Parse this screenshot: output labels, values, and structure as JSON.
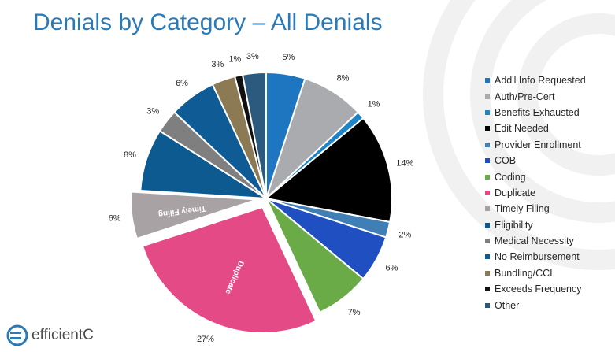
{
  "title": "Denials by Category – All Denials",
  "logo": {
    "text": "efficientC",
    "icon": "efficientc-logo-icon"
  },
  "colors": {
    "title": "#2a7ab8",
    "slice_label": "#ffffff"
  },
  "chart_data": {
    "type": "pie",
    "title": "Denials by Category – All Denials",
    "legend_position": "right",
    "start_angle": "12 o'clock, clockwise",
    "slices": [
      {
        "name": "Add'l Info Requested",
        "value": 5,
        "label": "5%",
        "color": "#1f76c0"
      },
      {
        "name": "Auth/Pre-Cert",
        "value": 8,
        "label": "8%",
        "color": "#a9abae"
      },
      {
        "name": "Benefits Exhausted",
        "value": 1,
        "label": "1%",
        "color": "#1e84c6"
      },
      {
        "name": "Edit Needed",
        "value": 14,
        "label": "14%",
        "color": "#000000"
      },
      {
        "name": "Provider Enrollment",
        "value": 2,
        "label": "2%",
        "color": "#3f7fb5"
      },
      {
        "name": "COB",
        "value": 6,
        "label": "6%",
        "color": "#1f4fc0"
      },
      {
        "name": "Coding",
        "value": 7,
        "label": "7%",
        "color": "#6aab48"
      },
      {
        "name": "Duplicate",
        "value": 27,
        "label": "27%",
        "color": "#e44a85",
        "inner_label": "Duplicate",
        "exploded": true
      },
      {
        "name": "Timely Filing",
        "value": 6,
        "label": "6%",
        "color": "#a8a2a4",
        "inner_label": "Timely Filing",
        "exploded": true
      },
      {
        "name": "Eligibility",
        "value": 8,
        "label": "8%",
        "color": "#0d5a91"
      },
      {
        "name": "Medical Necessity",
        "value": 3,
        "label": "3%",
        "color": "#7f7f7f"
      },
      {
        "name": "No Reimbursement",
        "value": 6,
        "label": "6%",
        "color": "#0f5b95"
      },
      {
        "name": "Bundling/CCI",
        "value": 3,
        "label": "3%",
        "color": "#8b7a54"
      },
      {
        "name": "Exceeds Frequency",
        "value": 1,
        "label": "1%",
        "color": "#111111"
      },
      {
        "name": "Other",
        "value": 3,
        "label": "3%",
        "color": "#2c5a7e"
      }
    ]
  }
}
